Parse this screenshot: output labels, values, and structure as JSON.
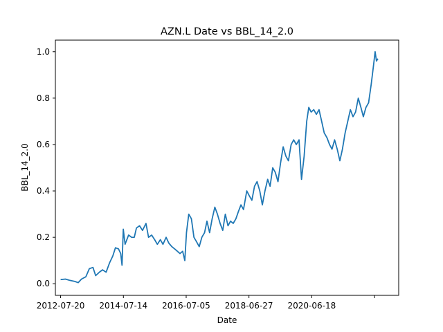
{
  "chart_data": {
    "type": "line",
    "title": "AZN.L Date vs BBL_14_2.0",
    "xlabel": "Date",
    "ylabel": "BBL_14_2.0",
    "x_tick_labels": [
      "2012-07-20",
      "2014-07-14",
      "2016-07-05",
      "2018-06-27",
      "2020-06-18",
      ""
    ],
    "y_ticks": [
      0.0,
      0.2,
      0.4,
      0.6,
      0.8,
      1.0
    ],
    "y_tick_labels": [
      "0.0",
      "0.2",
      "0.4",
      "0.6",
      "0.8",
      "1.0"
    ],
    "xlim": [
      "2012-05-20",
      "2023-05-01"
    ],
    "ylim": [
      -0.05,
      1.05
    ],
    "grid": false,
    "legend": "none",
    "series": [
      {
        "color": "#1f77b4",
        "points": [
          [
            "2012-07-20",
            0.018
          ],
          [
            "2012-09-15",
            0.02
          ],
          [
            "2012-11-01",
            0.015
          ],
          [
            "2013-01-01",
            0.01
          ],
          [
            "2013-02-10",
            0.005
          ],
          [
            "2013-03-20",
            0.02
          ],
          [
            "2013-05-10",
            0.03
          ],
          [
            "2013-06-20",
            0.065
          ],
          [
            "2013-08-01",
            0.07
          ],
          [
            "2013-09-01",
            0.035
          ],
          [
            "2013-10-15",
            0.05
          ],
          [
            "2013-11-20",
            0.06
          ],
          [
            "2014-01-01",
            0.05
          ],
          [
            "2014-02-10",
            0.09
          ],
          [
            "2014-03-20",
            0.12
          ],
          [
            "2014-04-20",
            0.155
          ],
          [
            "2014-05-25",
            0.15
          ],
          [
            "2014-06-20",
            0.13
          ],
          [
            "2014-07-05",
            0.08
          ],
          [
            "2014-07-20",
            0.235
          ],
          [
            "2014-08-10",
            0.17
          ],
          [
            "2014-09-20",
            0.21
          ],
          [
            "2014-10-25",
            0.2
          ],
          [
            "2014-11-25",
            0.2
          ],
          [
            "2014-12-20",
            0.24
          ],
          [
            "2015-01-25",
            0.25
          ],
          [
            "2015-03-01",
            0.23
          ],
          [
            "2015-04-10",
            0.26
          ],
          [
            "2015-05-10",
            0.2
          ],
          [
            "2015-06-15",
            0.21
          ],
          [
            "2015-07-20",
            0.19
          ],
          [
            "2015-08-20",
            0.17
          ],
          [
            "2015-09-25",
            0.19
          ],
          [
            "2015-10-25",
            0.17
          ],
          [
            "2015-12-01",
            0.2
          ],
          [
            "2016-01-01",
            0.175
          ],
          [
            "2016-02-05",
            0.16
          ],
          [
            "2016-03-10",
            0.15
          ],
          [
            "2016-04-10",
            0.14
          ],
          [
            "2016-05-10",
            0.13
          ],
          [
            "2016-06-10",
            0.14
          ],
          [
            "2016-07-05",
            0.1
          ],
          [
            "2016-07-25",
            0.22
          ],
          [
            "2016-08-20",
            0.3
          ],
          [
            "2016-09-20",
            0.28
          ],
          [
            "2016-10-20",
            0.2
          ],
          [
            "2016-11-20",
            0.18
          ],
          [
            "2016-12-20",
            0.16
          ],
          [
            "2017-01-20",
            0.2
          ],
          [
            "2017-02-20",
            0.22
          ],
          [
            "2017-03-20",
            0.27
          ],
          [
            "2017-04-20",
            0.22
          ],
          [
            "2017-05-20",
            0.28
          ],
          [
            "2017-06-20",
            0.33
          ],
          [
            "2017-07-20",
            0.3
          ],
          [
            "2017-08-20",
            0.26
          ],
          [
            "2017-09-20",
            0.23
          ],
          [
            "2017-10-20",
            0.3
          ],
          [
            "2017-11-20",
            0.25
          ],
          [
            "2017-12-20",
            0.27
          ],
          [
            "2018-01-20",
            0.26
          ],
          [
            "2018-02-20",
            0.28
          ],
          [
            "2018-03-20",
            0.31
          ],
          [
            "2018-04-20",
            0.34
          ],
          [
            "2018-05-20",
            0.32
          ],
          [
            "2018-06-27",
            0.4
          ],
          [
            "2018-07-25",
            0.38
          ],
          [
            "2018-08-25",
            0.36
          ],
          [
            "2018-09-25",
            0.42
          ],
          [
            "2018-10-25",
            0.44
          ],
          [
            "2018-11-25",
            0.4
          ],
          [
            "2018-12-25",
            0.34
          ],
          [
            "2019-01-25",
            0.4
          ],
          [
            "2019-02-25",
            0.45
          ],
          [
            "2019-03-25",
            0.42
          ],
          [
            "2019-04-25",
            0.5
          ],
          [
            "2019-05-25",
            0.48
          ],
          [
            "2019-06-25",
            0.44
          ],
          [
            "2019-07-25",
            0.52
          ],
          [
            "2019-08-25",
            0.59
          ],
          [
            "2019-09-25",
            0.55
          ],
          [
            "2019-10-25",
            0.53
          ],
          [
            "2019-11-25",
            0.6
          ],
          [
            "2019-12-25",
            0.62
          ],
          [
            "2020-01-25",
            0.6
          ],
          [
            "2020-02-25",
            0.62
          ],
          [
            "2020-03-25",
            0.45
          ],
          [
            "2020-04-25",
            0.55
          ],
          [
            "2020-05-25",
            0.7
          ],
          [
            "2020-06-18",
            0.76
          ],
          [
            "2020-07-15",
            0.74
          ],
          [
            "2020-08-15",
            0.75
          ],
          [
            "2020-09-15",
            0.73
          ],
          [
            "2020-10-15",
            0.75
          ],
          [
            "2020-11-15",
            0.7
          ],
          [
            "2020-12-15",
            0.65
          ],
          [
            "2021-01-15",
            0.63
          ],
          [
            "2021-02-15",
            0.6
          ],
          [
            "2021-03-15",
            0.58
          ],
          [
            "2021-04-15",
            0.62
          ],
          [
            "2021-05-15",
            0.58
          ],
          [
            "2021-06-15",
            0.53
          ],
          [
            "2021-07-15",
            0.58
          ],
          [
            "2021-08-15",
            0.65
          ],
          [
            "2021-09-15",
            0.7
          ],
          [
            "2021-10-15",
            0.75
          ],
          [
            "2021-11-15",
            0.72
          ],
          [
            "2021-12-15",
            0.74
          ],
          [
            "2022-01-15",
            0.8
          ],
          [
            "2022-02-15",
            0.76
          ],
          [
            "2022-03-15",
            0.72
          ],
          [
            "2022-04-15",
            0.76
          ],
          [
            "2022-05-15",
            0.78
          ],
          [
            "2022-06-15",
            0.86
          ],
          [
            "2022-07-15",
            0.95
          ],
          [
            "2022-07-30",
            1.0
          ],
          [
            "2022-08-15",
            0.96
          ],
          [
            "2022-09-01",
            0.97
          ]
        ]
      }
    ]
  }
}
